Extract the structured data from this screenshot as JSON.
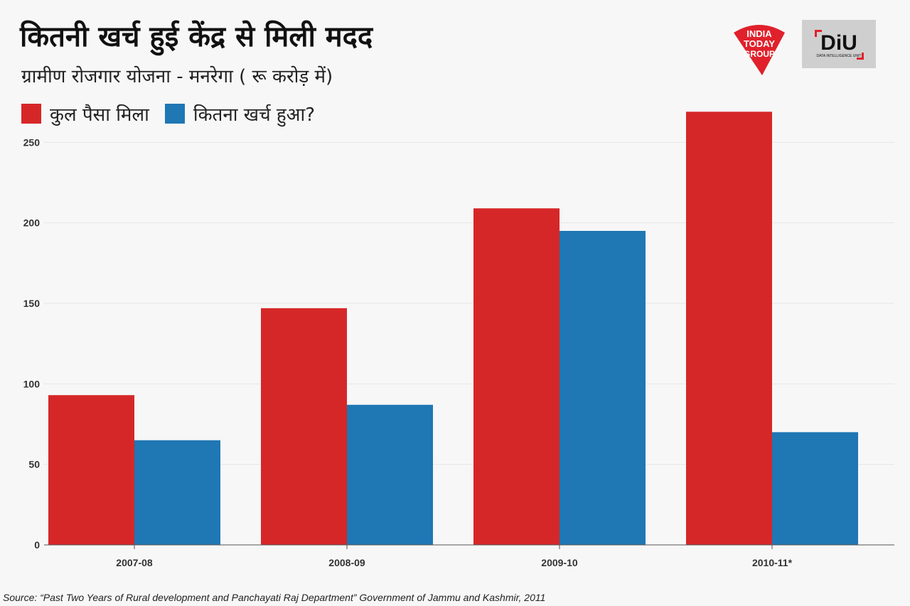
{
  "header": {
    "title": "कितनी खर्च हुई केंद्र से मिली मदद",
    "subtitle": "ग्रामीण रोजगार योजना - मनरेगा ( रू करोड़ में)"
  },
  "logos": {
    "india_today_text": [
      "INDIA",
      "TODAY",
      "GROUP"
    ],
    "diu_text": "DiU",
    "diu_sub": "DATA INTELLIGENCE UNIT"
  },
  "source": "Source: “Past Two Years of Rural development and Panchayati Raj Department” Government of Jammu and Kashmir, 2011",
  "chart_data": {
    "type": "bar",
    "categories": [
      "2007-08",
      "2008-09",
      "2009-10",
      "2010-11*"
    ],
    "series": [
      {
        "name": "कुल पैसा मिला",
        "color": "#d62728",
        "values": [
          93,
          147,
          209,
          269
        ]
      },
      {
        "name": "कितना खर्च हुआ?",
        "color": "#1f77b4",
        "values": [
          65,
          87,
          195,
          70
        ]
      }
    ],
    "ylim": [
      0,
      270
    ],
    "yticks": [
      0,
      50,
      100,
      150,
      200,
      250
    ],
    "grid": true,
    "legend": "top-left"
  }
}
